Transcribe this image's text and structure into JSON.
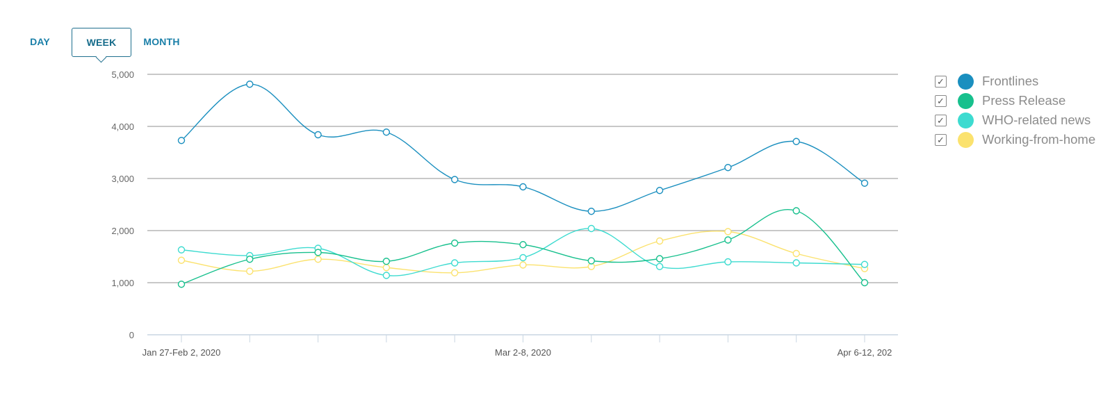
{
  "tabs": [
    {
      "label": "DAY",
      "active": false
    },
    {
      "label": "WEEK",
      "active": true
    },
    {
      "label": "MONTH",
      "active": false
    }
  ],
  "legend": [
    {
      "label": "Frontlines",
      "color": "#1a8fbf",
      "checked": true,
      "check_icon": "checkmark-icon"
    },
    {
      "label": "Press Release",
      "color": "#17c08d",
      "checked": true,
      "check_icon": "checkmark-icon"
    },
    {
      "label": "WHO-related news",
      "color": "#3ddbd0",
      "checked": true,
      "check_icon": "checkmark-icon"
    },
    {
      "label": "Working-from-home",
      "color": "#fbe26e",
      "checked": true,
      "check_icon": "checkmark-icon"
    }
  ],
  "chart_data": {
    "type": "line",
    "y_ticks": [
      "0",
      "1,000",
      "2,000",
      "3,000",
      "4,000",
      "5,000"
    ],
    "ylim": [
      0,
      5000
    ],
    "x_count": 11,
    "x_tick_labels": [
      {
        "index": 0,
        "label": "Jan 27-Feb 2, 2020"
      },
      {
        "index": 5,
        "label": "Mar 2-8, 2020"
      },
      {
        "index": 10,
        "label": "Apr 6-12, 202"
      }
    ],
    "grid": true,
    "series": [
      {
        "name": "Frontlines",
        "color": "#1a8fbf",
        "values": [
          3730,
          4810,
          3840,
          3890,
          2980,
          2840,
          2370,
          2770,
          3210,
          3710,
          2910
        ]
      },
      {
        "name": "Press Release",
        "color": "#17c08d",
        "values": [
          970,
          1450,
          1580,
          1410,
          1760,
          1730,
          1420,
          1460,
          1820,
          2380,
          1000
        ]
      },
      {
        "name": "WHO-related news",
        "color": "#3ddbd0",
        "values": [
          1630,
          1520,
          1660,
          1140,
          1380,
          1480,
          2040,
          1310,
          1400,
          1380,
          1350
        ]
      },
      {
        "name": "Working-from-home",
        "color": "#fbe26e",
        "values": [
          1430,
          1220,
          1450,
          1290,
          1190,
          1340,
          1310,
          1800,
          1980,
          1560,
          1270
        ]
      }
    ]
  }
}
